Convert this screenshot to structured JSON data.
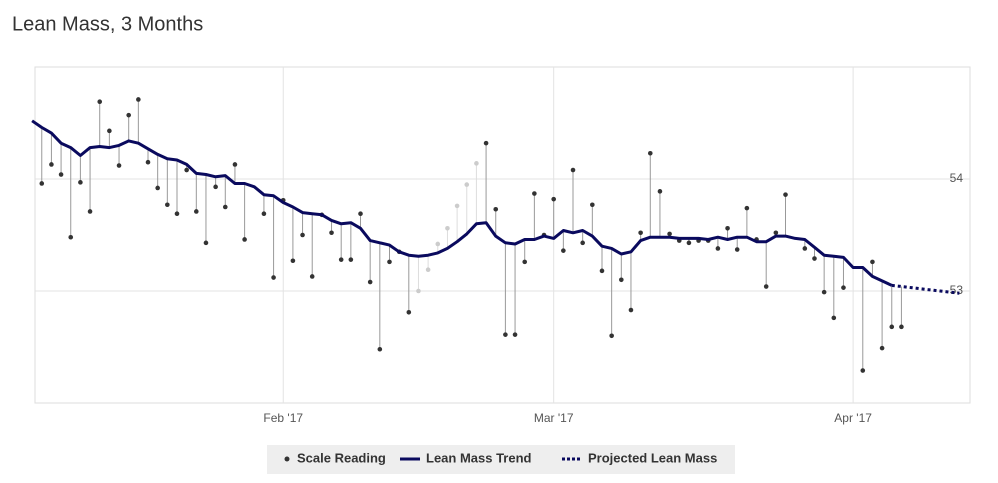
{
  "chart_data": {
    "type": "line",
    "title": "Lean Mass, 3 Months",
    "xlim": [
      6.3,
      103.1
    ],
    "xticks": [
      {
        "value": 32,
        "label": "Feb '17"
      },
      {
        "value": 60,
        "label": "Mar '17"
      },
      {
        "value": 91,
        "label": "Apr '17"
      }
    ],
    "ylim": [
      52,
      55
    ],
    "yticks": [
      53,
      54
    ],
    "grid": true,
    "series": [
      {
        "name": "Scale Reading",
        "mode": "points",
        "color": "#333333",
        "x": [
          7,
          8,
          9,
          10,
          11,
          12,
          13,
          14,
          15,
          16,
          17,
          18,
          19,
          20,
          21,
          22,
          23,
          24,
          25,
          26,
          27,
          28,
          30,
          31,
          32,
          33,
          34,
          35,
          36,
          37,
          38,
          39,
          40,
          41,
          42,
          43,
          44,
          45,
          46,
          47,
          48,
          49,
          50,
          51,
          52,
          53,
          54,
          55,
          56,
          57,
          58,
          59,
          60,
          61,
          62,
          63,
          64,
          65,
          66,
          67,
          68,
          69,
          70,
          71,
          72,
          73,
          74,
          75,
          76,
          77,
          78,
          79,
          80,
          81,
          82,
          83,
          84,
          86,
          87,
          88,
          89,
          90,
          92,
          93,
          94,
          95,
          96
        ],
        "values": [
          53.96,
          54.13,
          54.04,
          53.48,
          53.97,
          53.71,
          54.69,
          54.43,
          54.12,
          54.57,
          54.71,
          54.15,
          53.92,
          53.77,
          53.69,
          54.08,
          53.71,
          53.43,
          53.93,
          53.75,
          54.13,
          53.46,
          53.69,
          53.12,
          53.81,
          53.27,
          53.5,
          53.13,
          53.68,
          53.52,
          53.28,
          53.28,
          53.69,
          53.08,
          52.48,
          53.26,
          53.35,
          52.81,
          53.0,
          53.19,
          53.42,
          53.56,
          53.76,
          53.95,
          54.14,
          54.32,
          53.73,
          52.61,
          52.61,
          53.26,
          53.87,
          53.5,
          53.82,
          53.36,
          54.08,
          53.43,
          53.77,
          53.18,
          52.6,
          53.1,
          52.83,
          53.52,
          54.23,
          53.89,
          53.51,
          53.45,
          53.43,
          53.45,
          53.45,
          53.38,
          53.56,
          53.37,
          53.74,
          53.46,
          53.04,
          53.52,
          53.86,
          53.38,
          53.29,
          52.99,
          52.76,
          53.03,
          52.29,
          53.26,
          52.49,
          52.68,
          52.68
        ],
        "point_colors": [
          "#333",
          "#333",
          "#333",
          "#333",
          "#333",
          "#333",
          "#333",
          "#333",
          "#333",
          "#333",
          "#333",
          "#333",
          "#333",
          "#333",
          "#333",
          "#333",
          "#333",
          "#333",
          "#333",
          "#333",
          "#333",
          "#333",
          "#333",
          "#333",
          "#333",
          "#333",
          "#333",
          "#333",
          "#333",
          "#333",
          "#333",
          "#333",
          "#333",
          "#333",
          "#333",
          "#333",
          "#333",
          "#333",
          "#ccc",
          "#ccc",
          "#ccc",
          "#ccc",
          "#ccc",
          "#ccc",
          "#ccc",
          "#333",
          "#333",
          "#333",
          "#333",
          "#333",
          "#333",
          "#333",
          "#333",
          "#333",
          "#333",
          "#333",
          "#333",
          "#333",
          "#333",
          "#333",
          "#333",
          "#333",
          "#333",
          "#333",
          "#333",
          "#333",
          "#333",
          "#333",
          "#333",
          "#333",
          "#333",
          "#333",
          "#333",
          "#333",
          "#333",
          "#333",
          "#333",
          "#333",
          "#333",
          "#333",
          "#333",
          "#333",
          "#333",
          "#333",
          "#333",
          "#333",
          "#333"
        ]
      },
      {
        "name": "Lean Mass Trend",
        "mode": "line",
        "color": "#0a0a5e",
        "x": [
          6,
          7,
          8,
          9,
          10,
          11,
          12,
          13,
          14,
          15,
          16,
          17,
          18,
          19,
          20,
          21,
          22,
          23,
          24,
          25,
          26,
          27,
          28,
          29,
          30,
          31,
          32,
          33,
          34,
          35,
          36,
          37,
          38,
          39,
          40,
          41,
          42,
          43,
          44,
          45,
          46,
          47,
          48,
          49,
          50,
          51,
          52,
          53,
          54,
          55,
          56,
          57,
          58,
          59,
          60,
          61,
          62,
          63,
          64,
          65,
          66,
          67,
          68,
          69,
          70,
          71,
          72,
          73,
          74,
          75,
          76,
          77,
          78,
          79,
          80,
          81,
          82,
          83,
          84,
          85,
          86,
          87,
          88,
          89,
          90,
          91,
          92,
          93,
          94,
          95
        ],
        "values": [
          54.52,
          54.46,
          54.41,
          54.32,
          54.28,
          54.21,
          54.28,
          54.29,
          54.28,
          54.3,
          54.34,
          54.32,
          54.27,
          54.22,
          54.18,
          54.17,
          54.13,
          54.05,
          54.04,
          54.02,
          54.03,
          53.96,
          53.96,
          53.93,
          53.86,
          53.85,
          53.79,
          53.75,
          53.7,
          53.69,
          53.68,
          53.63,
          53.6,
          53.61,
          53.56,
          53.45,
          53.43,
          53.41,
          53.35,
          53.32,
          53.31,
          53.32,
          53.34,
          53.38,
          53.44,
          53.51,
          53.6,
          53.61,
          53.49,
          53.43,
          53.42,
          53.46,
          53.46,
          53.49,
          53.47,
          53.54,
          53.52,
          53.54,
          53.49,
          53.4,
          53.38,
          53.33,
          53.35,
          53.45,
          53.48,
          53.48,
          53.48,
          53.47,
          53.47,
          53.47,
          53.46,
          53.48,
          53.46,
          53.48,
          53.48,
          53.44,
          53.44,
          53.49,
          53.49,
          53.47,
          53.46,
          53.39,
          53.32,
          53.31,
          53.3,
          53.21,
          53.21,
          53.13,
          53.09,
          53.05
        ]
      },
      {
        "name": "Projected Lean Mass",
        "mode": "dotted",
        "color": "#0a0a5e",
        "x": [
          95,
          96,
          97,
          98,
          99,
          100,
          101,
          102
        ],
        "values": [
          53.05,
          53.04,
          53.03,
          53.02,
          53.01,
          53.0,
          52.99,
          52.98
        ]
      }
    ]
  }
}
